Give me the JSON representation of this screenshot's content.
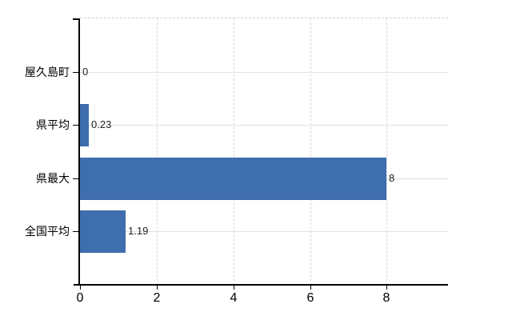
{
  "chart_data": {
    "type": "bar",
    "orientation": "horizontal",
    "categories": [
      "屋久島町",
      "県平均",
      "県最大",
      "全国平均"
    ],
    "values": [
      0,
      0.23,
      8,
      1.19
    ],
    "value_labels": [
      "0",
      "0.23",
      "8",
      "1.19"
    ],
    "x_tick_labels": [
      "0",
      "2",
      "4",
      "6",
      "8"
    ],
    "x_tick_values": [
      0,
      2,
      4,
      6,
      8
    ],
    "xlim": [
      0,
      9.6
    ],
    "grid": true,
    "legend": false,
    "colors": {
      "bar": "#3e6eae",
      "axis": "#000000",
      "grid_vertical": "#d9d9d9",
      "grid_horizontal": "#dde3dd",
      "value_label": "#222222",
      "tick_label": "#000000",
      "background": "#ffffff"
    }
  }
}
